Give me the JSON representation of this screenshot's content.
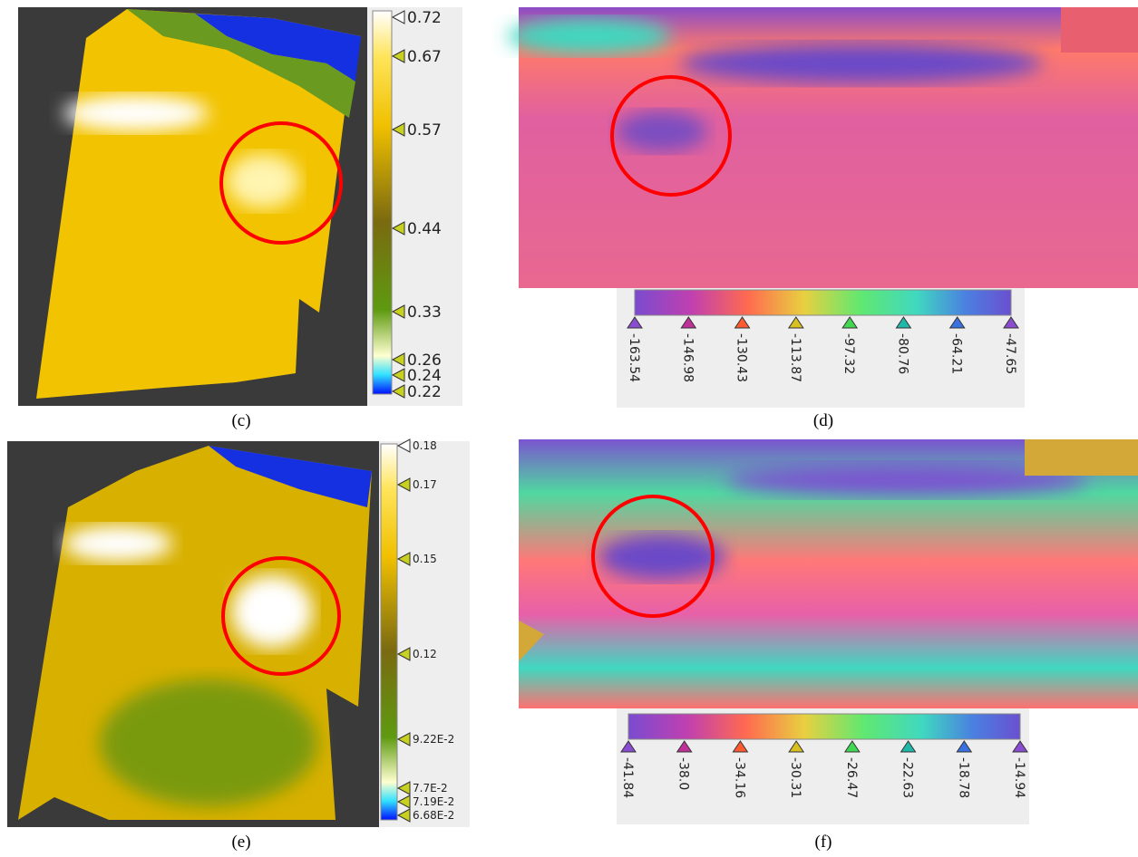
{
  "panels": [
    {
      "caption": "(c)",
      "ticks": [
        "0.72",
        "0.67",
        "0.57",
        "0.44",
        "0.33",
        "0.26",
        "0.24",
        "0.22"
      ]
    },
    {
      "caption": "(d)",
      "ticks": [
        "-163.54",
        "-146.98",
        "-130.43",
        "-113.87",
        "-97.32",
        "-80.76",
        "-64.21",
        "-47.65"
      ]
    },
    {
      "caption": "(e)",
      "ticks": [
        "0.18",
        "0.17",
        "0.15",
        "0.12",
        "9.22E-2",
        "7.7E-2",
        "7.19E-2",
        "6.68E-2"
      ]
    },
    {
      "caption": "(f)",
      "ticks": [
        "-41.84",
        "-38.0",
        "-34.16",
        "-30.31",
        "-26.47",
        "-22.63",
        "-18.78",
        "-14.94"
      ]
    }
  ]
}
